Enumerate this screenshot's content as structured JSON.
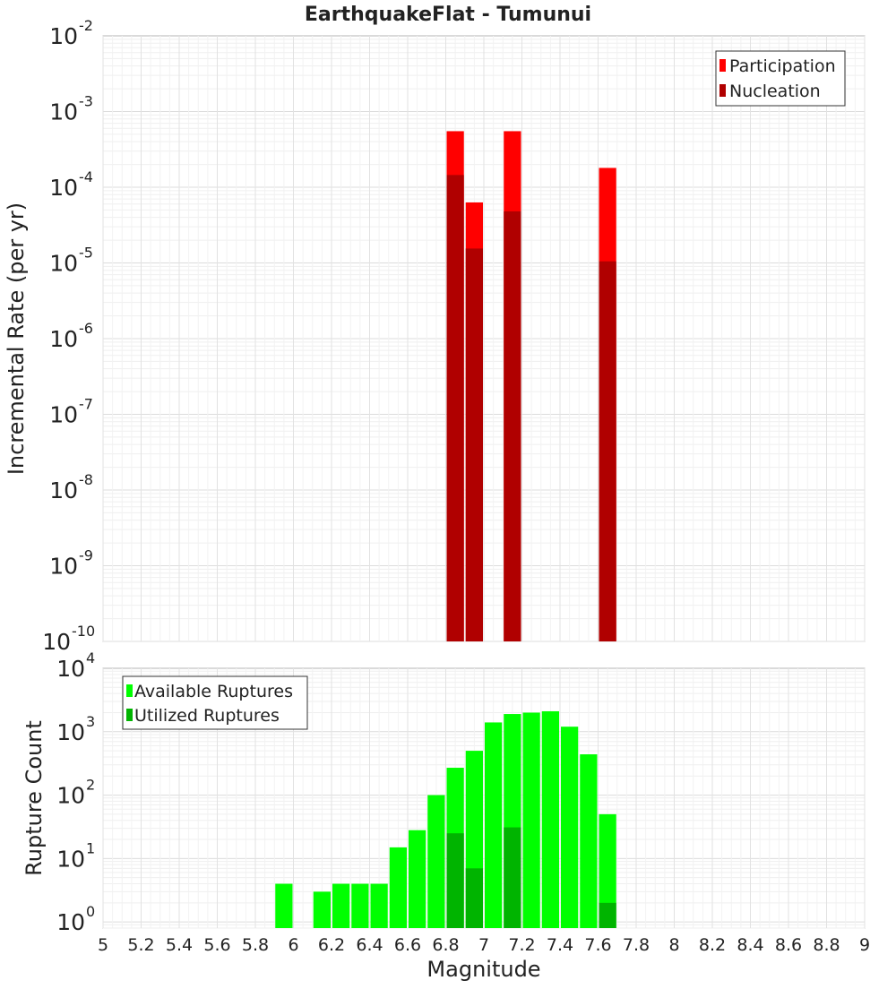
{
  "chart_data": [
    {
      "type": "bar",
      "title": "EarthquakeFlat - Tumunui",
      "ylabel": "Incremental Rate (per yr)",
      "yscale": "log",
      "ylim": [
        1e-10,
        0.01
      ],
      "y_ticks": [
        {
          "base": "10",
          "exp": "-10",
          "value": 1e-10
        },
        {
          "base": "10",
          "exp": "-9",
          "value": 1e-09
        },
        {
          "base": "10",
          "exp": "-8",
          "value": 1e-08
        },
        {
          "base": "10",
          "exp": "-7",
          "value": 1e-07
        },
        {
          "base": "10",
          "exp": "-6",
          "value": 1e-06
        },
        {
          "base": "10",
          "exp": "-5",
          "value": 1e-05
        },
        {
          "base": "10",
          "exp": "-4",
          "value": 0.0001
        },
        {
          "base": "10",
          "exp": "-3",
          "value": 0.001
        },
        {
          "base": "10",
          "exp": "-2",
          "value": 0.01
        }
      ],
      "xlim": [
        5,
        9
      ],
      "bar_width": 0.1,
      "grid": true,
      "legend_position": "top-right",
      "series": [
        {
          "name": "Participation",
          "color": "#ff0000",
          "points": [
            {
              "x": 6.85,
              "y": 0.00055
            },
            {
              "x": 6.95,
              "y": 6.3e-05
            },
            {
              "x": 7.15,
              "y": 0.00055
            },
            {
              "x": 7.65,
              "y": 0.00018
            }
          ]
        },
        {
          "name": "Nucleation",
          "color": "#b00000",
          "points": [
            {
              "x": 6.85,
              "y": 0.000145
            },
            {
              "x": 6.95,
              "y": 1.55e-05
            },
            {
              "x": 7.15,
              "y": 4.8e-05
            },
            {
              "x": 7.65,
              "y": 1.05e-05
            }
          ]
        }
      ]
    },
    {
      "type": "bar",
      "ylabel": "Rupture Count",
      "xlabel": "Magnitude",
      "yscale": "log",
      "ylim": [
        0.8,
        10000.0
      ],
      "y_ticks": [
        {
          "base": "10",
          "exp": "0",
          "value": 1
        },
        {
          "base": "10",
          "exp": "1",
          "value": 10
        },
        {
          "base": "10",
          "exp": "2",
          "value": 100
        },
        {
          "base": "10",
          "exp": "3",
          "value": 1000
        },
        {
          "base": "10",
          "exp": "4",
          "value": 10000
        }
      ],
      "xlim": [
        5,
        9
      ],
      "x_ticks": [
        "5",
        "5.2",
        "5.4",
        "5.6",
        "5.8",
        "6",
        "6.2",
        "6.4",
        "6.6",
        "6.8",
        "7",
        "7.2",
        "7.4",
        "7.6",
        "7.8",
        "8",
        "8.2",
        "8.4",
        "8.6",
        "8.8",
        "9"
      ],
      "bar_width": 0.1,
      "grid": true,
      "legend_position": "top-left",
      "series": [
        {
          "name": "Available Ruptures",
          "color": "#00ff00",
          "points": [
            {
              "x": 5.95,
              "y": 4
            },
            {
              "x": 6.15,
              "y": 3
            },
            {
              "x": 6.25,
              "y": 4
            },
            {
              "x": 6.35,
              "y": 4
            },
            {
              "x": 6.45,
              "y": 4
            },
            {
              "x": 6.55,
              "y": 15
            },
            {
              "x": 6.65,
              "y": 28
            },
            {
              "x": 6.75,
              "y": 100
            },
            {
              "x": 6.85,
              "y": 270
            },
            {
              "x": 6.95,
              "y": 500
            },
            {
              "x": 7.05,
              "y": 1400
            },
            {
              "x": 7.15,
              "y": 1900
            },
            {
              "x": 7.25,
              "y": 2000
            },
            {
              "x": 7.35,
              "y": 2100
            },
            {
              "x": 7.45,
              "y": 1200
            },
            {
              "x": 7.55,
              "y": 440
            },
            {
              "x": 7.65,
              "y": 50
            }
          ]
        },
        {
          "name": "Utilized Ruptures",
          "color": "#00b400",
          "points": [
            {
              "x": 6.85,
              "y": 25
            },
            {
              "x": 6.95,
              "y": 7
            },
            {
              "x": 7.15,
              "y": 31
            },
            {
              "x": 7.65,
              "y": 2
            }
          ]
        }
      ]
    }
  ]
}
